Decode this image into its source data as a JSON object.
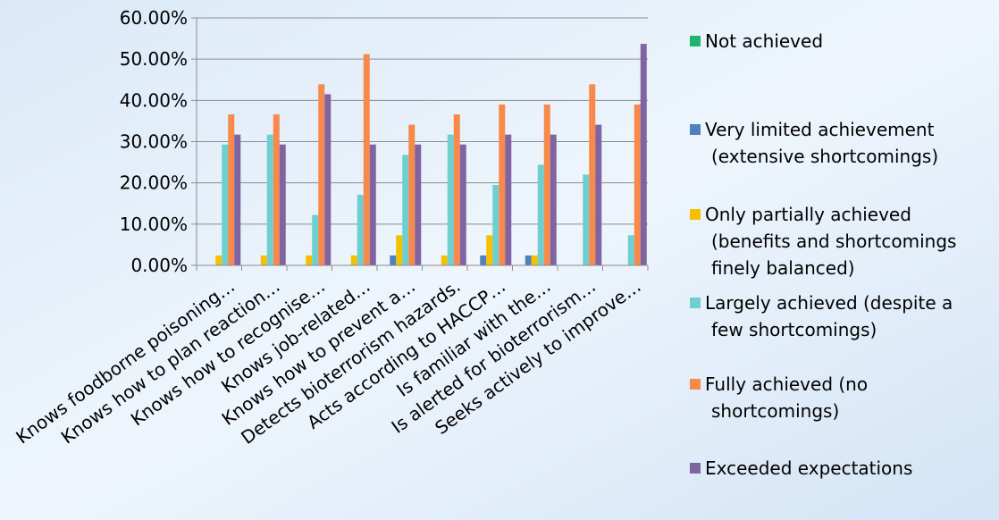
{
  "chart_data": {
    "type": "bar",
    "title": "",
    "xlabel": "",
    "ylabel": "",
    "ylim": [
      0,
      60
    ],
    "yticks": [
      "0.00%",
      "10.00%",
      "20.00%",
      "30.00%",
      "40.00%",
      "50.00%",
      "60.00%"
    ],
    "grid": true,
    "legend_position": "right",
    "categories": [
      "Knows foodborne poisoning…",
      "Knows how to plan reaction…",
      "Knows how to recognise…",
      "Knows job-related…",
      "Knows how to prevent a…",
      "Detects bioterrorism hazards.",
      "Acts according to HACCP…",
      "Is familiar with the…",
      "Is alerted for bioterrorism…",
      "Seeks actively to improve…"
    ],
    "series": [
      {
        "name": "Not achieved",
        "color": "#1eb46e",
        "values": [
          0,
          0,
          0,
          0,
          0,
          0,
          0,
          0,
          0,
          0
        ]
      },
      {
        "name": "Very limited achievement (extensive shortcomings)",
        "color": "#4f81bd",
        "values": [
          0,
          0,
          0,
          0,
          2.4,
          0,
          2.4,
          2.4,
          0,
          0
        ]
      },
      {
        "name": "Only partially achieved (benefits and shortcomings finely balanced)",
        "color": "#f5c000",
        "values": [
          2.4,
          2.4,
          2.4,
          2.4,
          7.3,
          2.4,
          7.3,
          2.4,
          0,
          0
        ]
      },
      {
        "name": "Largely achieved (despite a few shortcomings)",
        "color": "#6ecfd0",
        "values": [
          29.3,
          31.7,
          12.2,
          17.1,
          26.8,
          31.7,
          19.5,
          24.4,
          22.0,
          7.3
        ]
      },
      {
        "name": "Fully achieved (no shortcomings)",
        "color": "#f7894a",
        "values": [
          36.6,
          36.6,
          43.9,
          51.2,
          34.1,
          36.6,
          39.0,
          39.0,
          43.9,
          39.0
        ]
      },
      {
        "name": "Exceeded expectations",
        "color": "#8064a2",
        "values": [
          31.7,
          29.3,
          41.5,
          29.3,
          29.3,
          29.3,
          31.7,
          31.7,
          34.1,
          53.7
        ]
      }
    ]
  }
}
